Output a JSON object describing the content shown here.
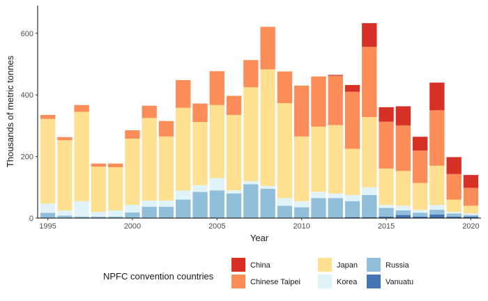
{
  "chart_data": {
    "type": "bar",
    "stacked": true,
    "xlabel": "Year",
    "ylabel": "Thousands of metric tonnes",
    "x_ticks": [
      "1995",
      "2000",
      "2005",
      "2010",
      "2015",
      "2020"
    ],
    "y_ticks": [
      "0",
      "200",
      "400",
      "600"
    ],
    "xlim": [
      1994.4,
      2020.6
    ],
    "ylim": [
      0,
      690
    ],
    "grid": false,
    "legend_position": "bottom",
    "legend_title": "NPFC convention countries",
    "colors": {
      "China": "#d73027",
      "Chinese Taipei": "#fc8d59",
      "Japan": "#fee090",
      "Korea": "#e0f3f8",
      "Russia": "#91bfdb",
      "Vanuatu": "#4575b4"
    },
    "legend_order": [
      "China",
      "Chinese Taipei",
      "Japan",
      "Korea",
      "Russia",
      "Vanuatu"
    ],
    "years": [
      1995,
      1996,
      1997,
      1998,
      1999,
      2000,
      2001,
      2002,
      2003,
      2004,
      2005,
      2006,
      2007,
      2008,
      2009,
      2010,
      2011,
      2012,
      2013,
      2014,
      2015,
      2016,
      2017,
      2018,
      2019,
      2020
    ],
    "series": [
      {
        "name": "Vanuatu",
        "values": [
          0,
          0,
          0,
          0,
          0,
          0,
          0,
          0,
          0,
          0,
          0,
          0,
          0,
          0,
          0,
          0,
          0,
          0,
          3,
          3,
          5,
          10,
          5,
          12,
          5,
          5
        ]
      },
      {
        "name": "Russia",
        "values": [
          17,
          8,
          5,
          5,
          5,
          18,
          37,
          37,
          60,
          85,
          90,
          80,
          110,
          95,
          40,
          35,
          65,
          65,
          52,
          72,
          28,
          15,
          12,
          15,
          10,
          5
        ]
      },
      {
        "name": "Korea",
        "values": [
          30,
          17,
          50,
          15,
          20,
          25,
          20,
          20,
          30,
          22,
          40,
          10,
          10,
          10,
          25,
          20,
          20,
          15,
          20,
          25,
          10,
          15,
          10,
          15,
          5,
          5
        ]
      },
      {
        "name": "Japan",
        "values": [
          275,
          228,
          290,
          147,
          140,
          215,
          268,
          208,
          268,
          205,
          237,
          245,
          305,
          378,
          308,
          210,
          212,
          222,
          150,
          228,
          118,
          113,
          87,
          128,
          40,
          25
        ]
      },
      {
        "name": "Chinese Taipei",
        "values": [
          13,
          10,
          22,
          10,
          12,
          27,
          40,
          50,
          90,
          60,
          110,
          62,
          88,
          138,
          103,
          165,
          163,
          160,
          185,
          228,
          152,
          148,
          105,
          180,
          83,
          58
        ]
      },
      {
        "name": "China",
        "values": [
          0,
          0,
          0,
          0,
          0,
          0,
          0,
          0,
          0,
          0,
          0,
          0,
          0,
          0,
          0,
          0,
          0,
          3,
          22,
          77,
          47,
          62,
          45,
          90,
          55,
          42
        ]
      }
    ]
  }
}
